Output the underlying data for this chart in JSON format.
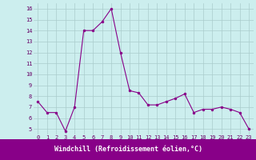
{
  "x": [
    0,
    1,
    2,
    3,
    4,
    5,
    6,
    7,
    8,
    9,
    10,
    11,
    12,
    13,
    14,
    15,
    16,
    17,
    18,
    19,
    20,
    21,
    22,
    23
  ],
  "y": [
    7.5,
    6.5,
    6.5,
    4.8,
    7.0,
    14.0,
    14.0,
    14.8,
    16.0,
    12.0,
    8.5,
    8.3,
    7.2,
    7.2,
    7.5,
    7.8,
    8.2,
    6.5,
    6.8,
    6.8,
    7.0,
    6.8,
    6.5,
    5.0
  ],
  "line_color": "#880088",
  "marker": "o",
  "markersize": 2.0,
  "linewidth": 0.8,
  "xlabel": "Windchill (Refroidissement éolien,°C)",
  "ylim": [
    4.5,
    16.5
  ],
  "xlim": [
    -0.5,
    23.5
  ],
  "yticks": [
    5,
    6,
    7,
    8,
    9,
    10,
    11,
    12,
    13,
    14,
    15,
    16
  ],
  "xticks": [
    0,
    1,
    2,
    3,
    4,
    5,
    6,
    7,
    8,
    9,
    10,
    11,
    12,
    13,
    14,
    15,
    16,
    17,
    18,
    19,
    20,
    21,
    22,
    23
  ],
  "bg_color": "#cceeee",
  "grid_color": "#aacccc",
  "xlabel_bg": "#880088",
  "xlabel_text_color": "#ffffff",
  "tick_label_color": "#660066",
  "tick_fontsize": 5.0,
  "xlabel_fontsize": 6.0
}
